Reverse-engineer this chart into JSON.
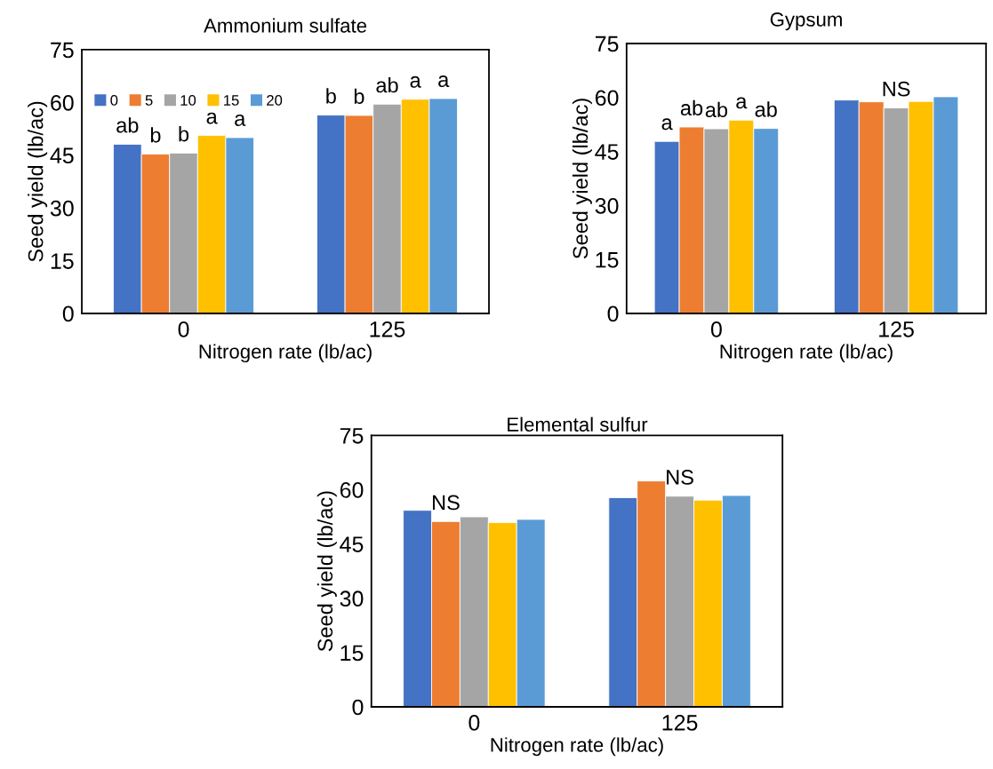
{
  "chart_data": [
    {
      "type": "bar",
      "title": "Ammonium sulfate",
      "xlabel": "Nitrogen rate (lb/ac)",
      "ylabel": "Seed yield (lb/ac)",
      "categories": [
        "0",
        "125"
      ],
      "ylim": [
        0,
        75
      ],
      "yticks": [
        0,
        15,
        30,
        45,
        60,
        75
      ],
      "legend": "top left",
      "series": [
        {
          "name": "0",
          "color": "#4472c4",
          "values": [
            48.1,
            56.4
          ],
          "value_labels": [
            "ab",
            "b"
          ]
        },
        {
          "name": "5",
          "color": "#ed7d31",
          "values": [
            45.3,
            56.3
          ],
          "value_labels": [
            "b",
            "b"
          ]
        },
        {
          "name": "10",
          "color": "#a5a5a5",
          "values": [
            45.6,
            59.5
          ],
          "value_labels": [
            "b",
            "ab"
          ]
        },
        {
          "name": "15",
          "color": "#ffc000",
          "values": [
            50.6,
            60.9
          ],
          "value_labels": [
            "a",
            "a"
          ]
        },
        {
          "name": "20",
          "color": "#5b9bd5",
          "values": [
            50.0,
            61.1
          ],
          "value_labels": [
            "a",
            "a"
          ]
        }
      ]
    },
    {
      "type": "bar",
      "title": "Gypsum",
      "xlabel": "Nitrogen rate (lb/ac)",
      "ylabel": "Seed yield (lb/ac)",
      "categories": [
        "0",
        "125"
      ],
      "ylim": [
        0,
        75
      ],
      "yticks": [
        0,
        15,
        30,
        45,
        60,
        75
      ],
      "series": [
        {
          "color": "#4472c4",
          "values": [
            47.8,
            59.3
          ],
          "value_labels": [
            "a",
            null
          ]
        },
        {
          "color": "#ed7d31",
          "values": [
            51.8,
            58.8
          ],
          "value_labels": [
            "ab",
            null
          ]
        },
        {
          "color": "#a5a5a5",
          "values": [
            51.3,
            57.1
          ],
          "value_labels": [
            "ab",
            "NS"
          ]
        },
        {
          "color": "#ffc000",
          "values": [
            53.7,
            58.9
          ],
          "value_labels": [
            "a",
            null
          ]
        },
        {
          "color": "#5b9bd5",
          "values": [
            51.4,
            60.2
          ],
          "value_labels": [
            "ab",
            null
          ]
        }
      ]
    },
    {
      "type": "bar",
      "title": "Elemental sulfur",
      "xlabel": "Nitrogen rate (lb/ac)",
      "ylabel": "Seed yield (lb/ac)",
      "categories": [
        "0",
        "125"
      ],
      "ylim": [
        0,
        75
      ],
      "yticks": [
        0,
        15,
        30,
        45,
        60,
        75
      ],
      "series": [
        {
          "color": "#4472c4",
          "values": [
            54.3,
            57.8
          ]
        },
        {
          "color": "#ed7d31",
          "values": [
            51.2,
            62.4
          ],
          "value_labels": [
            "NS",
            null
          ]
        },
        {
          "color": "#a5a5a5",
          "values": [
            52.5,
            58.2
          ],
          "value_labels": [
            null,
            "NS"
          ]
        },
        {
          "color": "#ffc000",
          "values": [
            50.9,
            57.1
          ]
        },
        {
          "color": "#5b9bd5",
          "values": [
            51.8,
            58.4
          ]
        }
      ]
    }
  ]
}
